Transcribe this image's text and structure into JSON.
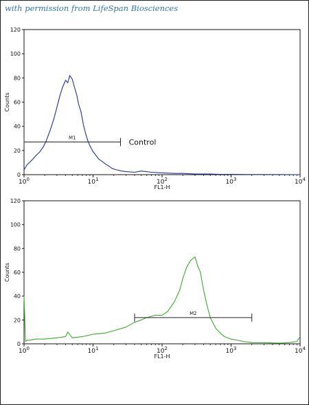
{
  "credit": "with permission from LifeSpan Biosciences",
  "chart_data": [
    {
      "type": "line",
      "name": "top-histogram",
      "xscale": "log",
      "xlim": [
        1,
        10000
      ],
      "ylim": [
        0,
        120
      ],
      "xlabel": "FL1-H",
      "ylabel": "Counts",
      "y_ticks": [
        "0",
        "20",
        "40",
        "60",
        "80",
        "100",
        "120"
      ],
      "x_ticks": [
        {
          "base": "10",
          "exp": "0"
        },
        {
          "base": "10",
          "exp": "1"
        },
        {
          "base": "10",
          "exp": "2"
        },
        {
          "base": "10",
          "exp": "3"
        },
        {
          "base": "10",
          "exp": "4"
        }
      ],
      "line_color": "#1f2f9c",
      "gate": {
        "label": "M1",
        "x_start": 1,
        "x_end": 25,
        "y": 27
      },
      "annotation": {
        "text": "Control",
        "x": 33,
        "y": 27
      },
      "x": [
        1.0,
        1.1,
        1.2,
        1.35,
        1.5,
        1.7,
        1.9,
        2.1,
        2.4,
        2.7,
        3.0,
        3.3,
        3.6,
        4.0,
        4.3,
        4.6,
        5.0,
        5.4,
        5.8,
        6.2,
        6.7,
        7.2,
        7.8,
        8.4,
        9.0,
        10,
        11,
        12,
        13.5,
        15,
        17,
        19,
        22,
        26,
        30,
        40,
        50,
        70,
        100,
        150,
        200,
        300,
        500,
        700,
        1000,
        2000,
        5000,
        10000
      ],
      "values": [
        4,
        8,
        10,
        13,
        16,
        19,
        23,
        28,
        37,
        46,
        56,
        65,
        72,
        78,
        76,
        82,
        79,
        72,
        66,
        58,
        52,
        42,
        34,
        28,
        24,
        19,
        16,
        13,
        11,
        9,
        7,
        5,
        4,
        3,
        2.5,
        2,
        3,
        2,
        1.5,
        1,
        1,
        0.5,
        0.5,
        0.3,
        0.2,
        0.1,
        0.1,
        0
      ]
    },
    {
      "type": "line",
      "name": "bottom-histogram",
      "xscale": "log",
      "xlim": [
        1,
        10000
      ],
      "ylim": [
        0,
        120
      ],
      "xlabel": "FL1-H",
      "ylabel": "Counts",
      "y_ticks": [
        "0",
        "20",
        "40",
        "60",
        "80",
        "100",
        "120"
      ],
      "x_ticks": [
        {
          "base": "10",
          "exp": "0"
        },
        {
          "base": "10",
          "exp": "1"
        },
        {
          "base": "10",
          "exp": "2"
        },
        {
          "base": "10",
          "exp": "3"
        },
        {
          "base": "10",
          "exp": "4"
        }
      ],
      "line_color": "#3aaa2a",
      "gate": {
        "label": "M2",
        "x_start": 40,
        "x_end": 2000,
        "y": 22
      },
      "x": [
        1.0,
        1.05,
        1.1,
        1.2,
        1.5,
        2,
        3,
        4,
        4.3,
        5,
        7,
        10,
        15,
        20,
        30,
        40,
        50,
        60,
        80,
        100,
        120,
        150,
        180,
        200,
        230,
        260,
        300,
        330,
        360,
        400,
        450,
        500,
        600,
        700,
        800,
        1000,
        1500,
        2000,
        3000,
        5000,
        7000,
        9000,
        10000
      ],
      "values": [
        40,
        2,
        3,
        3,
        4,
        4,
        5,
        6,
        10,
        5,
        6,
        8,
        9,
        11,
        14,
        18,
        20,
        22,
        24,
        24,
        27,
        35,
        45,
        55,
        65,
        70,
        73,
        65,
        60,
        45,
        32,
        22,
        13,
        9,
        6,
        4,
        2,
        1,
        1,
        0.5,
        1,
        2,
        6
      ]
    }
  ]
}
